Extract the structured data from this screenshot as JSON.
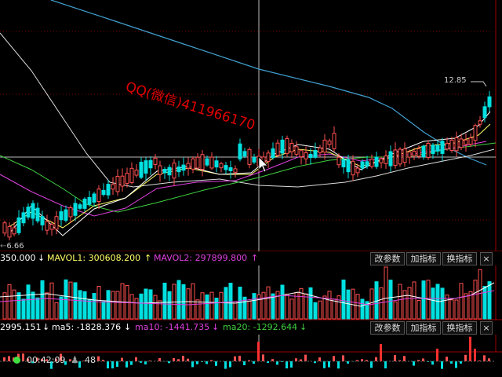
{
  "price_panel": {
    "high_label": "12.85",
    "low_label": "6.66",
    "watermark": "QQ(微信)411966170"
  },
  "volume_bar": {
    "vol_value": "350.000",
    "vol_arrow": "↓",
    "mavol1_label": "MAVOL1: 300608.200",
    "mavol1_arrow": "↑",
    "mavol2_label": "MAVOL2: 297899.800",
    "mavol2_arrow": "↑",
    "buttons": [
      "改参数",
      "加指标",
      "换指标"
    ],
    "close": "×"
  },
  "indicator_bar": {
    "value": "2995.151",
    "value_arrow": "↓",
    "ma5_label": "ma5: -1828.376",
    "ma5_arrow": "↓",
    "ma10_label": "ma10: -1441.735",
    "ma10_arrow": "↓",
    "ma20_label": "ma20: -1292.644",
    "ma20_arrow": "↓",
    "buttons": [
      "改参数",
      "加指标",
      "换指标"
    ],
    "close": "×"
  },
  "status_bar": {
    "time": "00:42:09",
    "count": "48"
  },
  "colors": {
    "up": "#ff5050",
    "down": "#00e0e0",
    "ma_white": "#ffffff",
    "ma_yellow": "#ffff66",
    "ma_magenta": "#e040e0",
    "ma_green": "#40d040",
    "ma_blue": "#40a0d0",
    "vol_red": "#ff3030"
  }
}
